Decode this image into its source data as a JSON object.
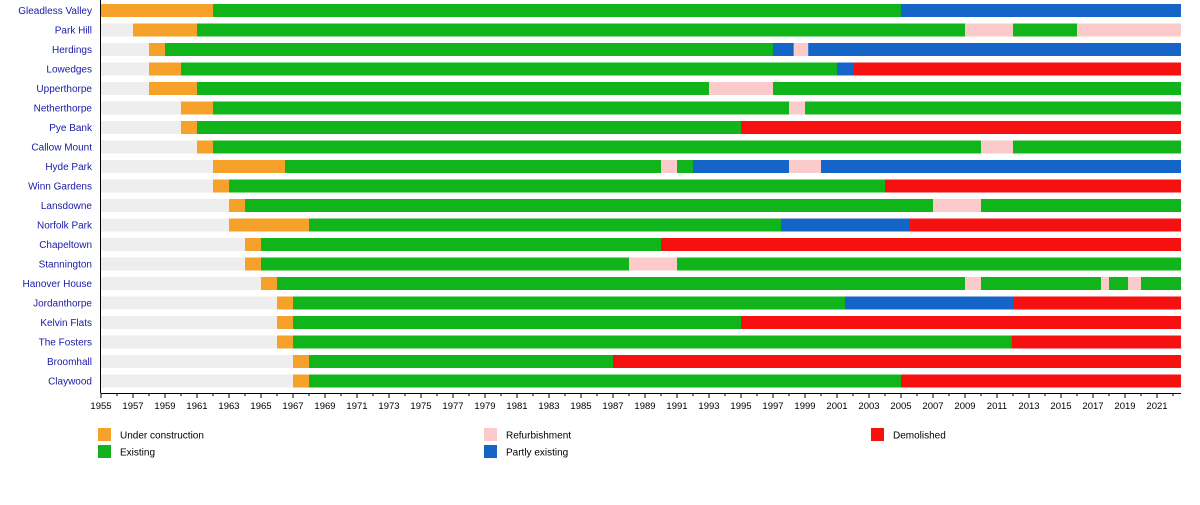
{
  "chart_data": {
    "type": "timeline",
    "title": "",
    "xlabel": "",
    "ylabel": "",
    "xlim": [
      1955,
      2022.5
    ],
    "x_ticks": [
      1955,
      1957,
      1959,
      1961,
      1963,
      1965,
      1967,
      1969,
      1971,
      1973,
      1975,
      1977,
      1979,
      1981,
      1983,
      1985,
      1987,
      1989,
      1991,
      1993,
      1995,
      1997,
      1999,
      2001,
      2003,
      2005,
      2007,
      2009,
      2011,
      2013,
      2015,
      2017,
      2019,
      2021
    ],
    "colors": {
      "construction": "#f6a12a",
      "existing": "#11b51b",
      "refurbishment": "#fbcaca",
      "partly": "#1565c8",
      "demolished": "#f61010",
      "pre": "#eeeeee"
    },
    "legend": [
      {
        "key": "construction",
        "label": "Under construction"
      },
      {
        "key": "existing",
        "label": "Existing"
      },
      {
        "key": "refurbishment",
        "label": "Refurbishment"
      },
      {
        "key": "partly",
        "label": "Partly existing"
      },
      {
        "key": "demolished",
        "label": "Demolished"
      }
    ],
    "rows": [
      {
        "name": "Gleadless Valley",
        "segments": [
          {
            "state": "construction",
            "start": 1955,
            "end": 1962
          },
          {
            "state": "existing",
            "start": 1962,
            "end": 2005
          },
          {
            "state": "partly",
            "start": 2005,
            "end": 2022.5
          }
        ]
      },
      {
        "name": "Park Hill",
        "segments": [
          {
            "state": "pre",
            "start": 1955,
            "end": 1957
          },
          {
            "state": "construction",
            "start": 1957,
            "end": 1961
          },
          {
            "state": "existing",
            "start": 1961,
            "end": 2009
          },
          {
            "state": "refurbishment",
            "start": 2009,
            "end": 2012
          },
          {
            "state": "existing",
            "start": 2012,
            "end": 2016
          },
          {
            "state": "refurbishment",
            "start": 2016,
            "end": 2022.5
          }
        ]
      },
      {
        "name": "Herdings",
        "segments": [
          {
            "state": "pre",
            "start": 1955,
            "end": 1958
          },
          {
            "state": "construction",
            "start": 1958,
            "end": 1959
          },
          {
            "state": "existing",
            "start": 1959,
            "end": 1997
          },
          {
            "state": "partly",
            "start": 1997,
            "end": 1998.3
          },
          {
            "state": "refurbishment",
            "start": 1998.3,
            "end": 1999.2
          },
          {
            "state": "partly",
            "start": 1999.2,
            "end": 2022.5
          }
        ]
      },
      {
        "name": "Lowedges",
        "segments": [
          {
            "state": "pre",
            "start": 1955,
            "end": 1958
          },
          {
            "state": "construction",
            "start": 1958,
            "end": 1960
          },
          {
            "state": "existing",
            "start": 1960,
            "end": 2001
          },
          {
            "state": "partly",
            "start": 2001,
            "end": 2002
          },
          {
            "state": "demolished",
            "start": 2002,
            "end": 2022.5
          }
        ]
      },
      {
        "name": "Upperthorpe",
        "segments": [
          {
            "state": "pre",
            "start": 1955,
            "end": 1958
          },
          {
            "state": "construction",
            "start": 1958,
            "end": 1961
          },
          {
            "state": "existing",
            "start": 1961,
            "end": 1993
          },
          {
            "state": "refurbishment",
            "start": 1993,
            "end": 1997
          },
          {
            "state": "existing",
            "start": 1997,
            "end": 2022.5
          }
        ]
      },
      {
        "name": "Netherthorpe",
        "segments": [
          {
            "state": "pre",
            "start": 1955,
            "end": 1960
          },
          {
            "state": "construction",
            "start": 1960,
            "end": 1962
          },
          {
            "state": "existing",
            "start": 1962,
            "end": 1998
          },
          {
            "state": "refurbishment",
            "start": 1998,
            "end": 1999
          },
          {
            "state": "existing",
            "start": 1999,
            "end": 2022.5
          }
        ]
      },
      {
        "name": "Pye Bank",
        "segments": [
          {
            "state": "pre",
            "start": 1955,
            "end": 1960
          },
          {
            "state": "construction",
            "start": 1960,
            "end": 1961
          },
          {
            "state": "existing",
            "start": 1961,
            "end": 1995
          },
          {
            "state": "demolished",
            "start": 1995,
            "end": 2022.5
          }
        ]
      },
      {
        "name": "Callow Mount",
        "segments": [
          {
            "state": "pre",
            "start": 1955,
            "end": 1961
          },
          {
            "state": "construction",
            "start": 1961,
            "end": 1962
          },
          {
            "state": "existing",
            "start": 1962,
            "end": 2010
          },
          {
            "state": "refurbishment",
            "start": 2010,
            "end": 2012
          },
          {
            "state": "existing",
            "start": 2012,
            "end": 2022.5
          }
        ]
      },
      {
        "name": "Hyde Park",
        "segments": [
          {
            "state": "pre",
            "start": 1955,
            "end": 1962
          },
          {
            "state": "construction",
            "start": 1962,
            "end": 1966.5
          },
          {
            "state": "existing",
            "start": 1966.5,
            "end": 1990
          },
          {
            "state": "refurbishment",
            "start": 1990,
            "end": 1991
          },
          {
            "state": "existing",
            "start": 1991,
            "end": 1992
          },
          {
            "state": "partly",
            "start": 1992,
            "end": 1998
          },
          {
            "state": "refurbishment",
            "start": 1998,
            "end": 2000
          },
          {
            "state": "partly",
            "start": 2000,
            "end": 2022.5
          }
        ]
      },
      {
        "name": "Winn Gardens",
        "segments": [
          {
            "state": "pre",
            "start": 1955,
            "end": 1962
          },
          {
            "state": "construction",
            "start": 1962,
            "end": 1963
          },
          {
            "state": "existing",
            "start": 1963,
            "end": 2004
          },
          {
            "state": "demolished",
            "start": 2004,
            "end": 2022.5
          }
        ]
      },
      {
        "name": "Lansdowne",
        "segments": [
          {
            "state": "pre",
            "start": 1955,
            "end": 1963
          },
          {
            "state": "construction",
            "start": 1963,
            "end": 1964
          },
          {
            "state": "existing",
            "start": 1964,
            "end": 2007
          },
          {
            "state": "refurbishment",
            "start": 2007,
            "end": 2010
          },
          {
            "state": "existing",
            "start": 2010,
            "end": 2022.5
          }
        ]
      },
      {
        "name": "Norfolk Park",
        "segments": [
          {
            "state": "pre",
            "start": 1955,
            "end": 1963
          },
          {
            "state": "construction",
            "start": 1963,
            "end": 1968
          },
          {
            "state": "existing",
            "start": 1968,
            "end": 1997.5
          },
          {
            "state": "partly",
            "start": 1997.5,
            "end": 2005.5
          },
          {
            "state": "demolished",
            "start": 2005.5,
            "end": 2022.5
          }
        ]
      },
      {
        "name": "Chapeltown",
        "segments": [
          {
            "state": "pre",
            "start": 1955,
            "end": 1964
          },
          {
            "state": "construction",
            "start": 1964,
            "end": 1965
          },
          {
            "state": "existing",
            "start": 1965,
            "end": 1990
          },
          {
            "state": "demolished",
            "start": 1990,
            "end": 2022.5
          }
        ]
      },
      {
        "name": "Stannington",
        "segments": [
          {
            "state": "pre",
            "start": 1955,
            "end": 1964
          },
          {
            "state": "construction",
            "start": 1964,
            "end": 1965
          },
          {
            "state": "existing",
            "start": 1965,
            "end": 1988
          },
          {
            "state": "refurbishment",
            "start": 1988,
            "end": 1991
          },
          {
            "state": "existing",
            "start": 1991,
            "end": 2022.5
          }
        ]
      },
      {
        "name": "Hanover House",
        "segments": [
          {
            "state": "pre",
            "start": 1955,
            "end": 1965
          },
          {
            "state": "construction",
            "start": 1965,
            "end": 1966
          },
          {
            "state": "existing",
            "start": 1966,
            "end": 2009
          },
          {
            "state": "refurbishment",
            "start": 2009,
            "end": 2010
          },
          {
            "state": "existing",
            "start": 2010,
            "end": 2017.5
          },
          {
            "state": "refurbishment",
            "start": 2017.5,
            "end": 2018
          },
          {
            "state": "existing",
            "start": 2018,
            "end": 2019.2
          },
          {
            "state": "refurbishment",
            "start": 2019.2,
            "end": 2020
          },
          {
            "state": "existing",
            "start": 2020,
            "end": 2022.5
          }
        ]
      },
      {
        "name": "Jordanthorpe",
        "segments": [
          {
            "state": "pre",
            "start": 1955,
            "end": 1966
          },
          {
            "state": "construction",
            "start": 1966,
            "end": 1967
          },
          {
            "state": "existing",
            "start": 1967,
            "end": 2001.5
          },
          {
            "state": "partly",
            "start": 2001.5,
            "end": 2012
          },
          {
            "state": "demolished",
            "start": 2012,
            "end": 2022.5
          }
        ]
      },
      {
        "name": "Kelvin Flats",
        "segments": [
          {
            "state": "pre",
            "start": 1955,
            "end": 1966
          },
          {
            "state": "construction",
            "start": 1966,
            "end": 1967
          },
          {
            "state": "existing",
            "start": 1967,
            "end": 1995
          },
          {
            "state": "demolished",
            "start": 1995,
            "end": 2022.5
          }
        ]
      },
      {
        "name": "The Fosters",
        "segments": [
          {
            "state": "pre",
            "start": 1955,
            "end": 1966
          },
          {
            "state": "construction",
            "start": 1966,
            "end": 1967
          },
          {
            "state": "existing",
            "start": 1967,
            "end": 2011.9
          },
          {
            "state": "demolished",
            "start": 2011.9,
            "end": 2022.5
          }
        ]
      },
      {
        "name": "Broomhall",
        "segments": [
          {
            "state": "pre",
            "start": 1955,
            "end": 1967
          },
          {
            "state": "construction",
            "start": 1967,
            "end": 1968
          },
          {
            "state": "existing",
            "start": 1968,
            "end": 1987
          },
          {
            "state": "demolished",
            "start": 1987,
            "end": 2022.5
          }
        ]
      },
      {
        "name": "Claywood",
        "segments": [
          {
            "state": "pre",
            "start": 1955,
            "end": 1967
          },
          {
            "state": "construction",
            "start": 1967,
            "end": 1968
          },
          {
            "state": "existing",
            "start": 1968,
            "end": 2005
          },
          {
            "state": "demolished",
            "start": 2005,
            "end": 2022.5
          }
        ]
      }
    ]
  }
}
